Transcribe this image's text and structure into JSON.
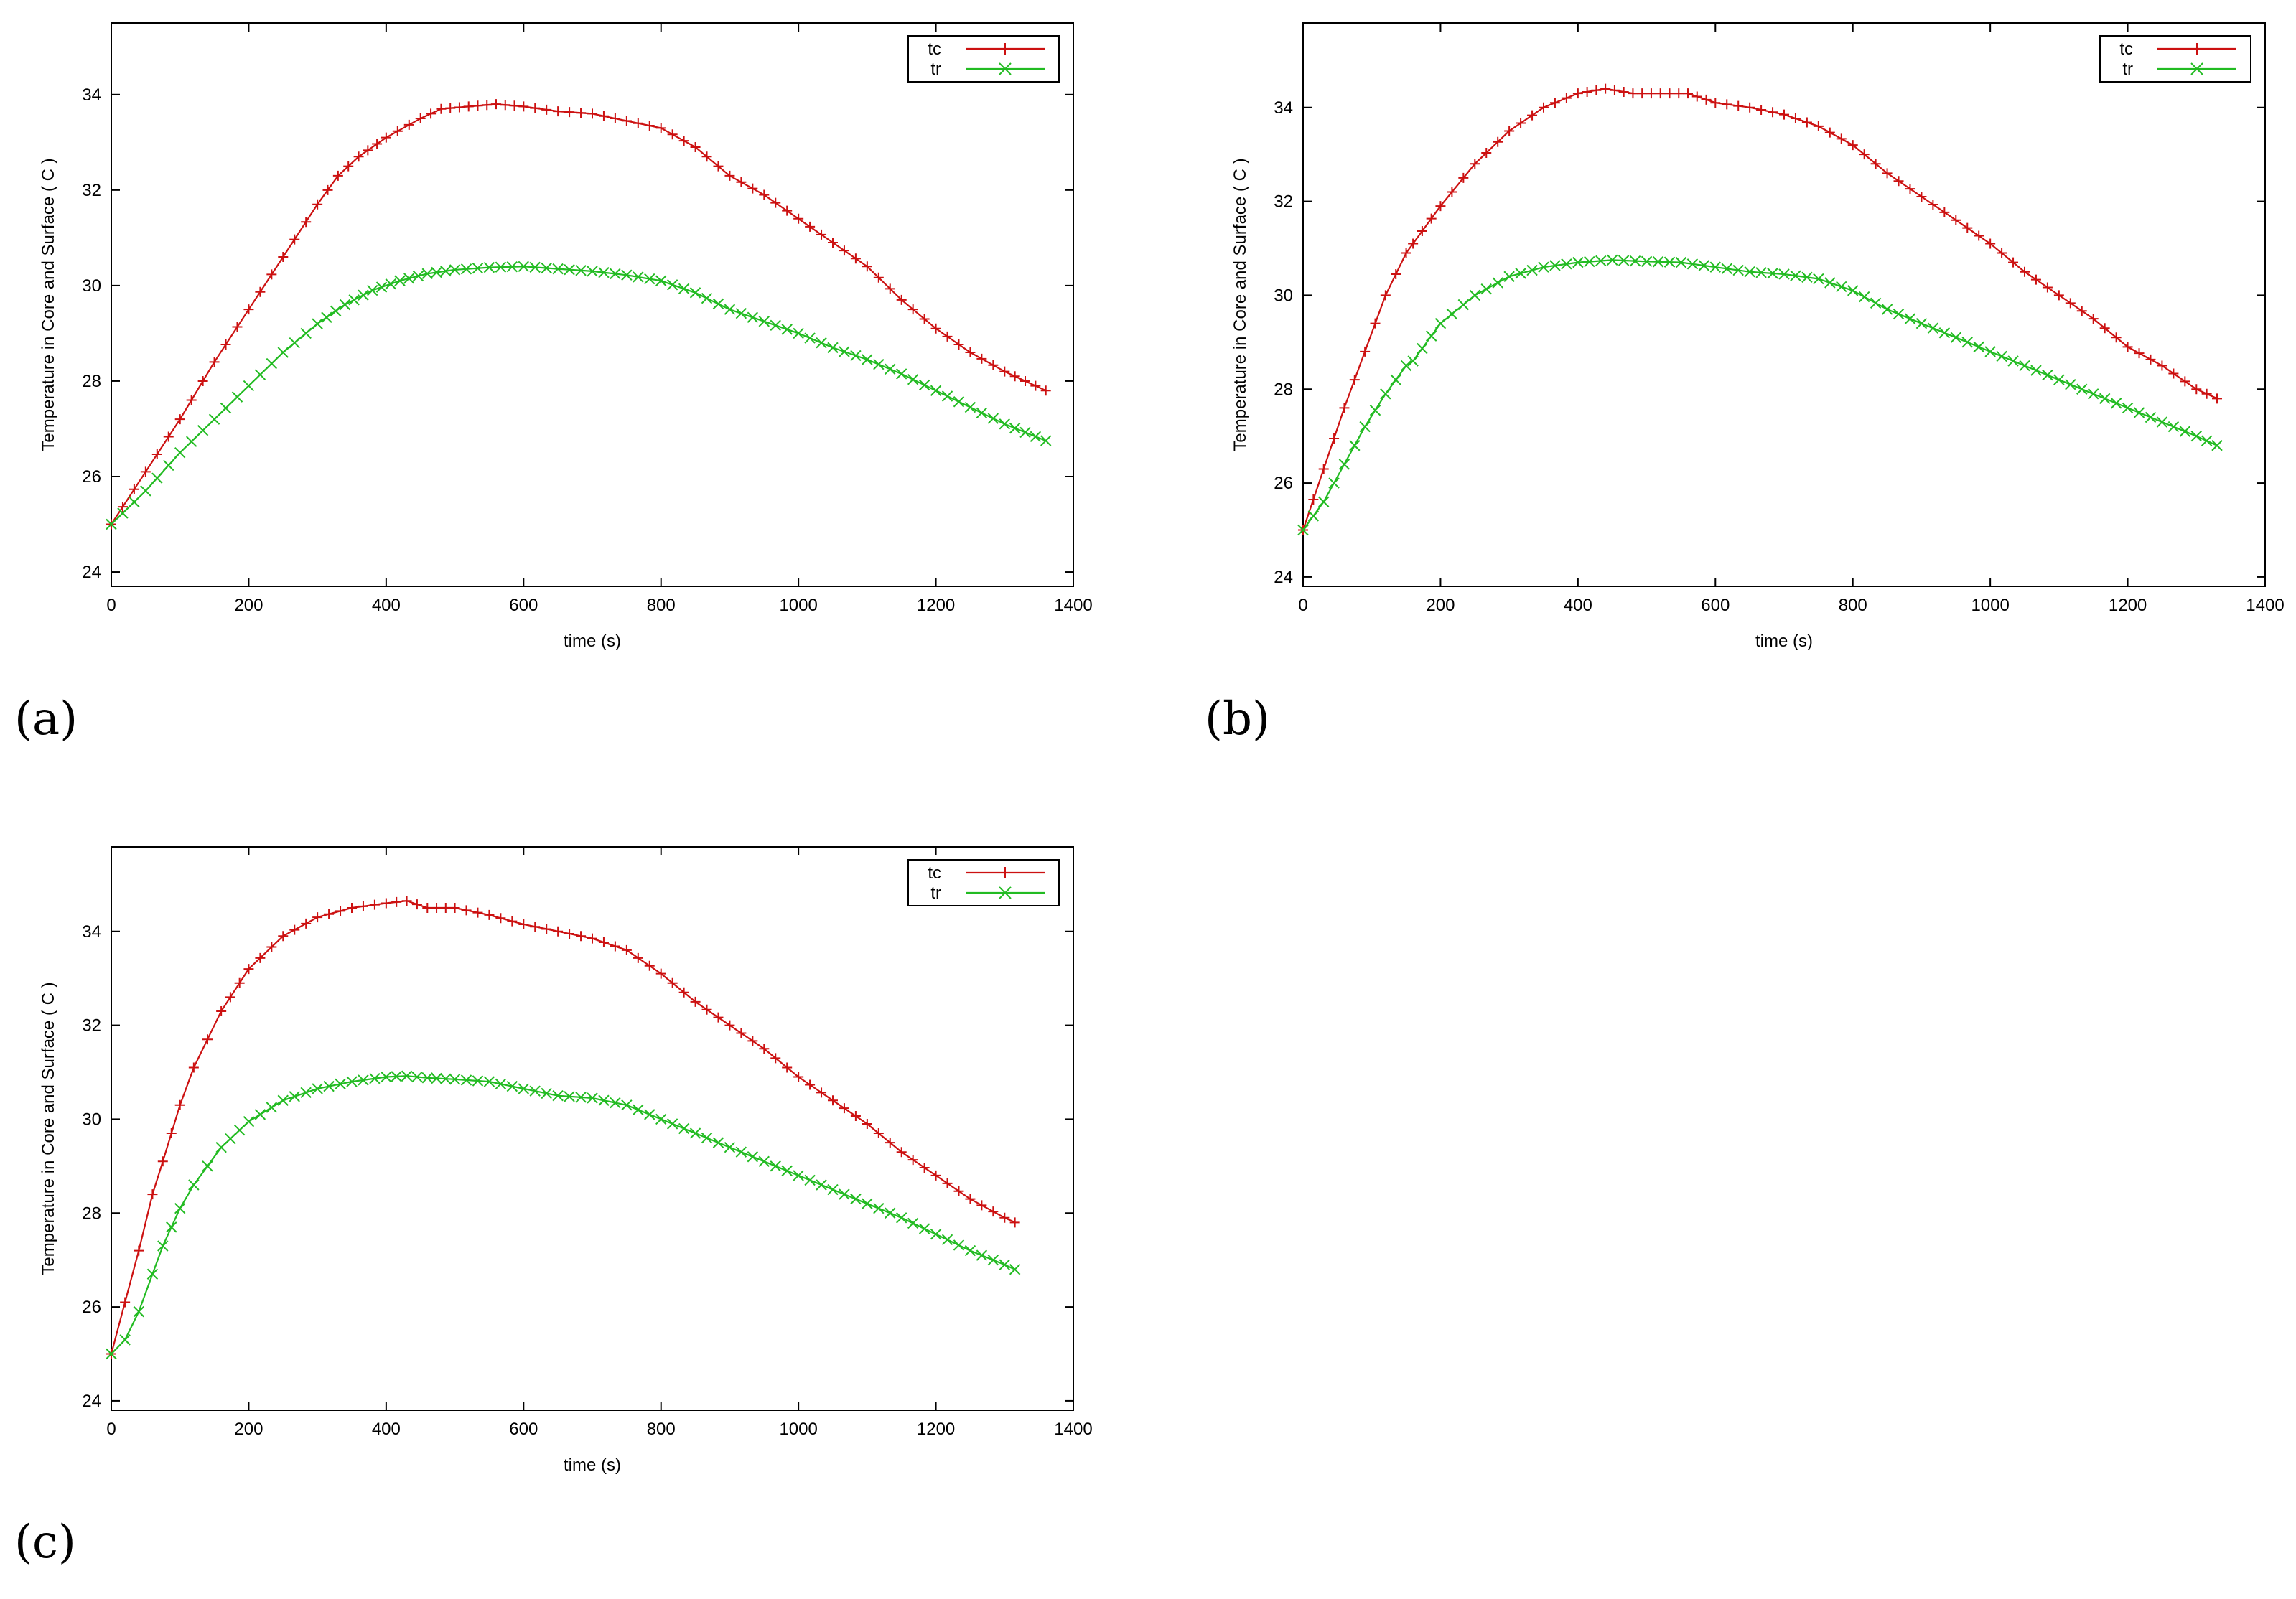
{
  "colors": {
    "tc": "#cc1111",
    "tr": "#22bb22",
    "axis": "#000000",
    "background": "#ffffff"
  },
  "chart_data": [
    {
      "panel_label": "(a)",
      "type": "line",
      "xlabel": "time (s)",
      "ylabel": "Temperature in Core and Surface ( C )",
      "xlim": [
        0,
        1400
      ],
      "ylim": [
        23.7,
        35.5
      ],
      "xticks": [
        0,
        200,
        400,
        600,
        800,
        1000,
        1200,
        1400
      ],
      "yticks": [
        24,
        26,
        28,
        30,
        32,
        34
      ],
      "legend_position": "top-right",
      "grid": false,
      "series": [
        {
          "name": "tc",
          "marker": "plus",
          "x": [
            0,
            50,
            100,
            150,
            200,
            250,
            300,
            330,
            360,
            400,
            450,
            480,
            520,
            560,
            600,
            650,
            700,
            750,
            800,
            850,
            900,
            950,
            1000,
            1050,
            1100,
            1150,
            1200,
            1250,
            1300,
            1360
          ],
          "y": [
            25.0,
            26.1,
            27.2,
            28.4,
            29.5,
            30.6,
            31.7,
            32.3,
            32.7,
            33.1,
            33.5,
            33.7,
            33.75,
            33.8,
            33.75,
            33.65,
            33.6,
            33.45,
            33.3,
            32.9,
            32.3,
            31.9,
            31.4,
            30.9,
            30.4,
            29.7,
            29.1,
            28.6,
            28.2,
            27.8
          ]
        },
        {
          "name": "tr",
          "marker": "cross",
          "x": [
            0,
            50,
            100,
            150,
            200,
            250,
            300,
            340,
            380,
            420,
            460,
            500,
            550,
            600,
            650,
            700,
            750,
            800,
            850,
            900,
            950,
            1000,
            1050,
            1100,
            1150,
            1200,
            1250,
            1300,
            1360
          ],
          "y": [
            25.0,
            25.7,
            26.5,
            27.2,
            27.9,
            28.6,
            29.2,
            29.6,
            29.9,
            30.1,
            30.25,
            30.33,
            30.38,
            30.4,
            30.35,
            30.3,
            30.22,
            30.1,
            29.85,
            29.5,
            29.25,
            29.0,
            28.7,
            28.45,
            28.15,
            27.8,
            27.45,
            27.1,
            26.75
          ]
        }
      ]
    },
    {
      "panel_label": "(b)",
      "type": "line",
      "xlabel": "time (s)",
      "ylabel": "Temperature in Core and Surface ( C )",
      "xlim": [
        0,
        1400
      ],
      "ylim": [
        23.8,
        35.8
      ],
      "xticks": [
        0,
        200,
        400,
        600,
        800,
        1000,
        1200,
        1400
      ],
      "yticks": [
        24,
        26,
        28,
        30,
        32,
        34
      ],
      "legend_position": "top-right",
      "grid": false,
      "series": [
        {
          "name": "tc",
          "marker": "plus",
          "x": [
            0,
            30,
            60,
            90,
            120,
            150,
            160,
            200,
            250,
            300,
            350,
            400,
            440,
            480,
            520,
            560,
            600,
            650,
            700,
            750,
            800,
            850,
            900,
            950,
            1000,
            1050,
            1100,
            1150,
            1200,
            1250,
            1300,
            1330
          ],
          "y": [
            25.0,
            26.3,
            27.6,
            28.8,
            30.0,
            30.9,
            31.1,
            31.9,
            32.8,
            33.5,
            34.0,
            34.3,
            34.4,
            34.3,
            34.3,
            34.3,
            34.1,
            34.0,
            33.85,
            33.6,
            33.2,
            32.6,
            32.1,
            31.6,
            31.1,
            30.5,
            30.0,
            29.5,
            28.9,
            28.5,
            28.0,
            27.8
          ]
        },
        {
          "name": "tr",
          "marker": "cross",
          "x": [
            0,
            30,
            60,
            90,
            120,
            150,
            160,
            200,
            250,
            300,
            350,
            400,
            450,
            500,
            550,
            600,
            650,
            700,
            750,
            800,
            850,
            900,
            950,
            1000,
            1050,
            1100,
            1150,
            1200,
            1250,
            1300,
            1330
          ],
          "y": [
            25.0,
            25.6,
            26.4,
            27.2,
            27.9,
            28.5,
            28.6,
            29.4,
            30.0,
            30.4,
            30.6,
            30.7,
            30.75,
            30.72,
            30.7,
            30.6,
            30.5,
            30.45,
            30.35,
            30.1,
            29.7,
            29.4,
            29.1,
            28.8,
            28.5,
            28.2,
            27.9,
            27.6,
            27.3,
            27.0,
            26.8
          ]
        }
      ]
    },
    {
      "panel_label": "(c)",
      "type": "line",
      "xlabel": "time (s)",
      "ylabel": "Temperature in Core and Surface ( C )",
      "xlim": [
        0,
        1400
      ],
      "ylim": [
        23.8,
        35.8
      ],
      "xticks": [
        0,
        200,
        400,
        600,
        800,
        1000,
        1200,
        1400
      ],
      "yticks": [
        24,
        26,
        28,
        30,
        32,
        34
      ],
      "legend_position": "top-right",
      "grid": false,
      "series": [
        {
          "name": "tc",
          "marker": "plus",
          "x": [
            0,
            20,
            40,
            60,
            75,
            100,
            120,
            140,
            160,
            200,
            250,
            300,
            350,
            400,
            430,
            460,
            500,
            550,
            600,
            650,
            700,
            750,
            800,
            850,
            900,
            950,
            1000,
            1050,
            1100,
            1150,
            1200,
            1250,
            1300,
            1315
          ],
          "y": [
            25.0,
            26.1,
            27.2,
            28.4,
            29.1,
            30.3,
            31.1,
            31.7,
            32.3,
            33.2,
            33.9,
            34.3,
            34.5,
            34.6,
            34.65,
            34.5,
            34.5,
            34.35,
            34.15,
            34.0,
            33.85,
            33.6,
            33.1,
            32.5,
            32.0,
            31.5,
            30.9,
            30.4,
            29.9,
            29.3,
            28.8,
            28.3,
            27.9,
            27.8
          ]
        },
        {
          "name": "tr",
          "marker": "cross",
          "x": [
            0,
            20,
            40,
            60,
            75,
            100,
            120,
            140,
            160,
            200,
            250,
            300,
            350,
            400,
            430,
            460,
            500,
            550,
            600,
            650,
            700,
            750,
            800,
            850,
            900,
            950,
            1000,
            1050,
            1100,
            1150,
            1200,
            1250,
            1300,
            1315
          ],
          "y": [
            25.0,
            25.3,
            25.9,
            26.7,
            27.3,
            28.1,
            28.6,
            29.0,
            29.4,
            29.95,
            30.4,
            30.65,
            30.8,
            30.9,
            30.92,
            30.88,
            30.85,
            30.8,
            30.65,
            30.5,
            30.45,
            30.3,
            30.0,
            29.7,
            29.4,
            29.1,
            28.8,
            28.5,
            28.2,
            27.9,
            27.55,
            27.2,
            26.9,
            26.8
          ]
        }
      ]
    }
  ]
}
